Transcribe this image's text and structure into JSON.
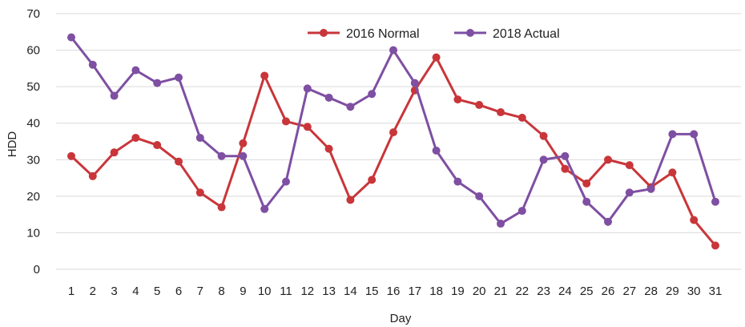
{
  "chart_data": {
    "type": "line",
    "title": "",
    "xlabel": "Day",
    "ylabel": "HDD",
    "ylim": [
      0,
      70
    ],
    "yticks": [
      0,
      10,
      20,
      30,
      40,
      50,
      60,
      70
    ],
    "grid": true,
    "legend_position": "top-center",
    "categories": [
      "1",
      "2",
      "3",
      "4",
      "5",
      "6",
      "7",
      "8",
      "9",
      "10",
      "11",
      "12",
      "13",
      "14",
      "15",
      "16",
      "17",
      "18",
      "19",
      "20",
      "21",
      "22",
      "23",
      "24",
      "25",
      "26",
      "27",
      "28",
      "29",
      "30",
      "31"
    ],
    "series": [
      {
        "name": "2016 Normal",
        "color": "#c8363a",
        "values": [
          31,
          25.5,
          32,
          36,
          34,
          29.5,
          21,
          17,
          34.5,
          53,
          40.5,
          39,
          33,
          19,
          24.5,
          37.5,
          49,
          58,
          46.5,
          45,
          43,
          41.5,
          36.5,
          27.5,
          23.5,
          30,
          28.5,
          22.5,
          26.5,
          13.5,
          6.5
        ]
      },
      {
        "name": "2018 Actual",
        "color": "#7e4fa2",
        "values": [
          63.5,
          56,
          47.5,
          54.5,
          51,
          52.5,
          36,
          31,
          31,
          16.5,
          24,
          49.5,
          47,
          44.5,
          48,
          60,
          51,
          32.5,
          24,
          20,
          12.5,
          16,
          30,
          31,
          18.5,
          13,
          21,
          22,
          37,
          37,
          18.5
        ]
      }
    ]
  }
}
